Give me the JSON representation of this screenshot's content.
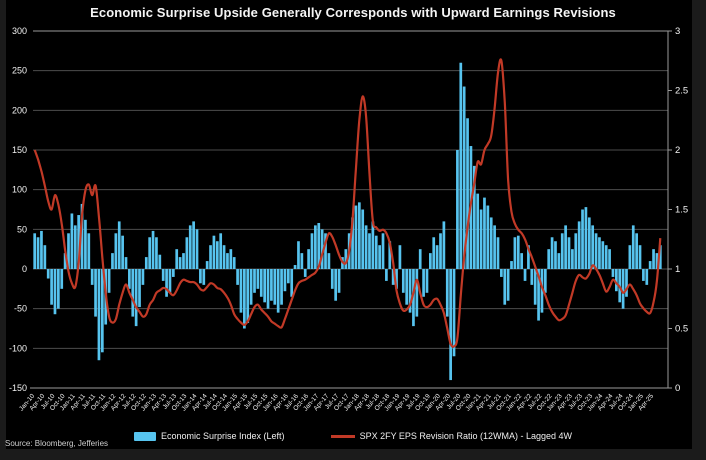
{
  "title": "Economic Surprise Upside Generally Corresponds with Upward Earnings Revisions",
  "source": "Source: Bloomberg, Jefferies",
  "legend": {
    "series_bar_label": "Economic Surprise Index (Left)",
    "series_line_label": "SPX 2FY EPS Revision Ratio (12WMA) - Lagged 4W"
  },
  "colors": {
    "background": "#000000",
    "frame": "#1b1b1b",
    "bars": "#57c4ef",
    "line": "#c13926",
    "grid": "#4d4d4d",
    "axis": "#9a9a9a",
    "text": "#f2f2f2"
  },
  "chart_data": {
    "type": "bar+line combo, dual axis",
    "frequency": "monthly (estimated from weekly chart)",
    "x_start": "2010-01",
    "x_end": "2025-06",
    "x_tick_labels": [
      "Jan-10",
      "Apr-10",
      "Jul-10",
      "Oct-10",
      "Jan-11",
      "Apr-11",
      "Jul-11",
      "Oct-11",
      "Jan-12",
      "Apr-12",
      "Jul-12",
      "Oct-12",
      "Jan-13",
      "Apr-13",
      "Jul-13",
      "Oct-13",
      "Jan-14",
      "Apr-14",
      "Jul-14",
      "Oct-14",
      "Jan-15",
      "Apr-15",
      "Jul-15",
      "Oct-15",
      "Jan-16",
      "Apr-16",
      "Jul-16",
      "Oct-16",
      "Jan-17",
      "Apr-17",
      "Jul-17",
      "Oct-17",
      "Jan-18",
      "Apr-18",
      "Jul-18",
      "Oct-18",
      "Jan-19",
      "Apr-19",
      "Jul-19",
      "Oct-19",
      "Jan-20",
      "Apr-20",
      "Jul-20",
      "Oct-20",
      "Jan-21",
      "Apr-21",
      "Jul-21",
      "Oct-21",
      "Jan-22",
      "Apr-22",
      "Jul-22",
      "Oct-22",
      "Jan-23",
      "Apr-23",
      "Jul-23",
      "Oct-23",
      "Jan-24",
      "Apr-24",
      "Jul-24",
      "Oct-24",
      "Jan-25",
      "Apr-25"
    ],
    "left_axis": {
      "min": -150,
      "max": 300,
      "tick_step": 50,
      "ticks": [
        300,
        250,
        200,
        150,
        100,
        50,
        0,
        -50,
        -100,
        -150
      ]
    },
    "right_axis": {
      "min": 0,
      "max": 3,
      "tick_step": 0.5,
      "ticks": [
        3,
        2.5,
        2,
        1.5,
        1,
        0.5,
        0
      ]
    },
    "series": [
      {
        "name": "Economic Surprise Index (Left)",
        "type": "bar",
        "axis": "left",
        "values": [
          45,
          40,
          48,
          30,
          -12,
          -45,
          -57,
          -50,
          -25,
          20,
          45,
          70,
          55,
          68,
          82,
          62,
          45,
          -20,
          -60,
          -115,
          -105,
          -70,
          -30,
          20,
          45,
          60,
          42,
          15,
          -25,
          -60,
          -72,
          -48,
          -20,
          15,
          40,
          48,
          40,
          18,
          -15,
          -35,
          -30,
          -10,
          25,
          15,
          20,
          40,
          55,
          60,
          50,
          -18,
          -20,
          10,
          30,
          42,
          35,
          45,
          30,
          20,
          25,
          15,
          -20,
          -55,
          -75,
          -68,
          -45,
          -30,
          -25,
          -35,
          -42,
          -50,
          -40,
          -45,
          -55,
          -45,
          -28,
          -18,
          -35,
          5,
          35,
          20,
          -10,
          25,
          45,
          55,
          58,
          50,
          45,
          20,
          -25,
          -40,
          -30,
          15,
          25,
          45,
          65,
          80,
          84,
          75,
          55,
          45,
          60,
          42,
          30,
          45,
          -15,
          35,
          -20,
          -25,
          30,
          -30,
          -45,
          -55,
          -72,
          -60,
          25,
          -35,
          -30,
          20,
          40,
          30,
          45,
          60,
          -60,
          -140,
          -110,
          150,
          260,
          230,
          190,
          155,
          130,
          95,
          75,
          90,
          80,
          65,
          55,
          40,
          -10,
          -45,
          -40,
          10,
          40,
          42,
          20,
          -15,
          30,
          -20,
          -45,
          -65,
          -55,
          -30,
          25,
          40,
          35,
          20,
          45,
          55,
          40,
          25,
          45,
          60,
          75,
          78,
          65,
          55,
          45,
          40,
          35,
          30,
          25,
          -10,
          -28,
          -42,
          -50,
          -35,
          30,
          55,
          45,
          30,
          -15,
          -20,
          10,
          25,
          20,
          30
        ]
      },
      {
        "name": "SPX 2FY EPS Revision Ratio (12WMA) - Lagged 4W",
        "type": "line",
        "axis": "right",
        "values": [
          2.0,
          1.92,
          1.82,
          1.7,
          1.57,
          1.5,
          1.62,
          1.54,
          1.38,
          1.16,
          0.98,
          0.88,
          0.85,
          1.05,
          1.45,
          1.66,
          1.71,
          1.62,
          1.7,
          1.44,
          1.1,
          0.8,
          0.6,
          0.55,
          0.58,
          0.7,
          0.8,
          0.87,
          0.8,
          0.74,
          0.68,
          0.64,
          0.6,
          0.62,
          0.7,
          0.74,
          0.8,
          0.82,
          0.84,
          0.83,
          0.8,
          0.78,
          0.82,
          0.88,
          0.91,
          0.9,
          0.89,
          0.89,
          0.87,
          0.83,
          0.82,
          0.85,
          0.88,
          0.87,
          0.84,
          0.83,
          0.8,
          0.76,
          0.7,
          0.62,
          0.58,
          0.55,
          0.53,
          0.56,
          0.62,
          0.68,
          0.7,
          0.66,
          0.63,
          0.6,
          0.56,
          0.54,
          0.52,
          0.51,
          0.58,
          0.66,
          0.74,
          0.82,
          0.88,
          0.9,
          0.91,
          0.93,
          0.95,
          0.97,
          1.02,
          1.12,
          1.22,
          1.3,
          1.27,
          1.2,
          1.12,
          1.06,
          1.05,
          1.15,
          1.42,
          1.85,
          2.25,
          2.45,
          2.28,
          1.8,
          1.4,
          1.35,
          1.32,
          1.33,
          1.3,
          1.22,
          1.05,
          0.82,
          0.71,
          0.65,
          0.66,
          0.7,
          0.8,
          0.91,
          0.8,
          0.7,
          0.68,
          0.7,
          0.74,
          0.75,
          0.7,
          0.63,
          0.5,
          0.37,
          0.35,
          0.42,
          0.78,
          1.1,
          1.35,
          1.55,
          1.72,
          1.9,
          1.88,
          2.0,
          2.05,
          2.12,
          2.35,
          2.65,
          2.75,
          2.4,
          1.75,
          1.48,
          1.38,
          1.33,
          1.3,
          1.25,
          1.17,
          1.1,
          1.02,
          0.94,
          0.85,
          0.78,
          0.7,
          0.64,
          0.6,
          0.57,
          0.58,
          0.61,
          0.7,
          0.8,
          0.9,
          0.95,
          0.93,
          0.92,
          0.96,
          1.03,
          1.0,
          0.95,
          0.88,
          0.81,
          0.85,
          0.91,
          0.88,
          0.85,
          0.8,
          0.83,
          0.87,
          0.83,
          0.78,
          0.71,
          0.67,
          0.64,
          0.63,
          0.72,
          0.9,
          1.26
        ]
      }
    ]
  }
}
